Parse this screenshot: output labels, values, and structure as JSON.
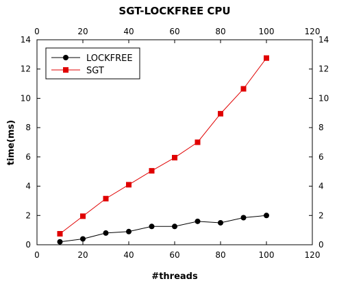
{
  "chart_data": {
    "type": "line",
    "title": "SGT-LOCKFREE CPU",
    "xlabel": "#threads",
    "ylabel": "time(ms)",
    "xlim": [
      0,
      120
    ],
    "ylim": [
      0,
      14
    ],
    "xticks": [
      0,
      20,
      40,
      60,
      80,
      100,
      120
    ],
    "yticks": [
      0,
      2,
      4,
      6,
      8,
      10,
      12,
      14
    ],
    "grid": false,
    "mirrored_axes": true,
    "legend_position": "top-left",
    "series": [
      {
        "name": "LOCKFREE",
        "color": "#000000",
        "marker": "circle",
        "x": [
          10,
          20,
          30,
          40,
          50,
          60,
          70,
          80,
          90,
          100
        ],
        "y": [
          0.2,
          0.4,
          0.8,
          0.9,
          1.25,
          1.25,
          1.6,
          1.5,
          1.85,
          2.0
        ]
      },
      {
        "name": "SGT",
        "color": "#e00000",
        "marker": "square",
        "x": [
          10,
          20,
          30,
          40,
          50,
          60,
          70,
          80,
          90,
          100
        ],
        "y": [
          0.75,
          1.95,
          3.15,
          4.1,
          5.05,
          5.95,
          7.0,
          8.95,
          10.65,
          12.75
        ]
      }
    ]
  }
}
